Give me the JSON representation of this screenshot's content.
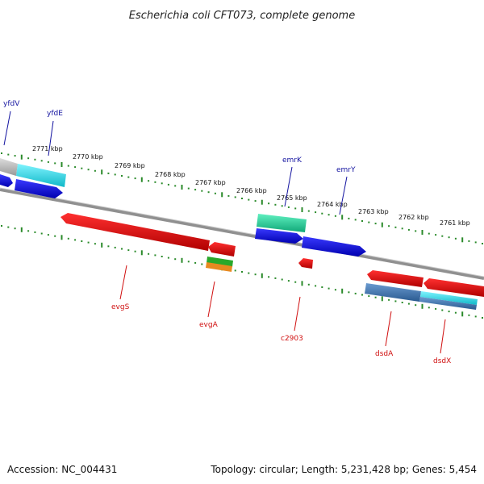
{
  "title": "Escherichia coli CFT073, complete genome",
  "footer": {
    "accession": "Accession: NC_004431",
    "topology": "Topology: circular; Length: 5,231,428 bp; Genes: 5,454"
  },
  "kbp_labels": [
    "2771 kbp",
    "2770 kbp",
    "2769 kbp",
    "2768 kbp",
    "2767 kbp",
    "2766 kbp",
    "2765 kbp",
    "2764 kbp",
    "2763 kbp",
    "2762 kbp",
    "2761 kbp"
  ],
  "genes_top": [
    "yfdV",
    "yfdE",
    "emrK",
    "emrY"
  ],
  "genes_bottom": [
    "evgS",
    "evgA",
    "c2903",
    "dsdA",
    "dsdX"
  ],
  "colors": {
    "backbone": "#8a8a8a",
    "ticks": "#2a8a2a",
    "forward_blue": "#1010e0",
    "reverse_red": "#e01010",
    "cyan": "#22d8e8",
    "teal": "#30d8a0",
    "steel": "#4a7fb0"
  }
}
